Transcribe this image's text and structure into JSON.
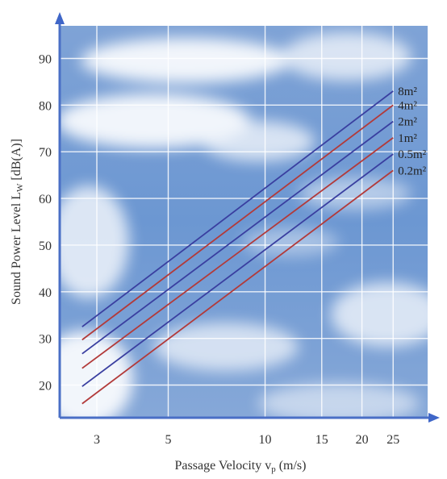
{
  "chart_data": {
    "type": "line",
    "xlabel": "Passage Velocity v",
    "xlabel_sub": "p",
    "xlabel_unit": " (m/s)",
    "ylabel": "Sound Power Level L",
    "ylabel_sub": "W",
    "ylabel_unit": " [dB(A)]",
    "x_scale": "log",
    "xlim": [
      2.3,
      32
    ],
    "ylim": [
      13,
      97
    ],
    "x_ticks": [
      3,
      5,
      10,
      15,
      20,
      25
    ],
    "y_ticks": [
      20,
      30,
      40,
      50,
      60,
      70,
      80,
      90
    ],
    "grid": true,
    "background": "sky with clouds",
    "series": [
      {
        "name": "8m²",
        "color": "#3a3fa0",
        "x": [
          2.7,
          25
        ],
        "y": [
          32.5,
          83.0
        ]
      },
      {
        "name": "4m²",
        "color": "#b23a3a",
        "x": [
          2.7,
          25
        ],
        "y": [
          29.7,
          80.0
        ]
      },
      {
        "name": "2m²",
        "color": "#3a3fa0",
        "x": [
          2.7,
          25
        ],
        "y": [
          26.7,
          76.5
        ]
      },
      {
        "name": "1m²",
        "color": "#b23a3a",
        "x": [
          2.7,
          25
        ],
        "y": [
          23.6,
          73.0
        ]
      },
      {
        "name": "0.5m²",
        "color": "#3a3fa0",
        "x": [
          2.7,
          25
        ],
        "y": [
          19.7,
          69.5
        ]
      },
      {
        "name": "0.2m²",
        "color": "#b23a3a",
        "x": [
          2.7,
          25
        ],
        "y": [
          16.0,
          66.0
        ]
      }
    ]
  }
}
